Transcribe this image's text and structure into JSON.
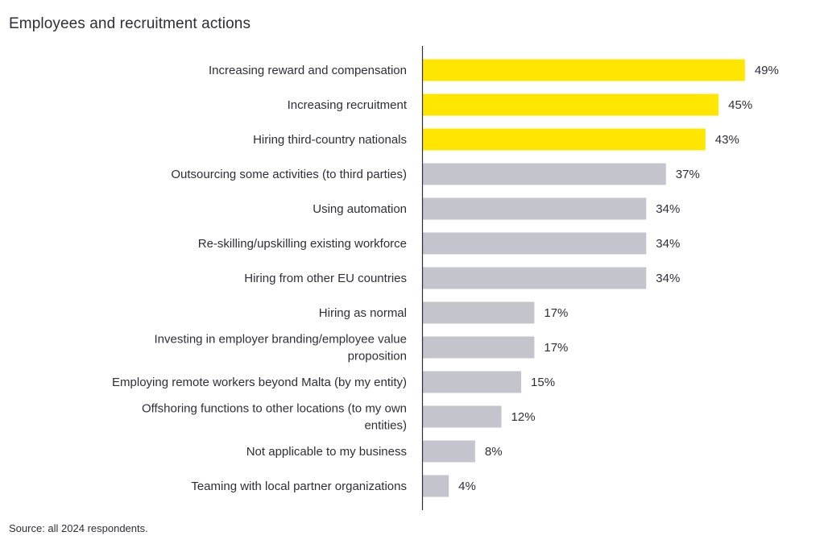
{
  "chart_data": {
    "type": "bar",
    "orientation": "horizontal",
    "title": "Employees and recruitment actions",
    "xlabel": "",
    "ylabel": "",
    "xlim": [
      0,
      50
    ],
    "grid": false,
    "legend": "none",
    "categories": [
      "Increasing reward and compensation",
      "Increasing recruitment",
      "Hiring third-country nationals",
      "Outsourcing some activities  (to third parties)",
      "Using automation",
      "Re-skilling/upskilling existing workforce",
      "Hiring from other EU countries",
      "Hiring as normal",
      "Investing in employer branding/employee value proposition",
      "Employing remote workers beyond Malta  (by my entity)",
      "Offshoring functions to other locations  (to my own entities)",
      "Not applicable to my business",
      "Teaming with local partner organizations"
    ],
    "category_label_lines": [
      [
        "Increasing reward and compensation"
      ],
      [
        "Increasing recruitment"
      ],
      [
        "Hiring third-country nationals"
      ],
      [
        "Outsourcing some activities  (to third parties)"
      ],
      [
        "Using automation"
      ],
      [
        "Re-skilling/upskilling existing workforce"
      ],
      [
        "Hiring from other EU countries"
      ],
      [
        "Hiring as normal"
      ],
      [
        "Investing in employer branding/employee value",
        "proposition"
      ],
      [
        "Employing remote workers beyond Malta  (by my entity)"
      ],
      [
        "Offshoring functions to other locations  (to my own",
        "entities)"
      ],
      [
        "Not applicable to my business"
      ],
      [
        "Teaming with local partner organizations"
      ]
    ],
    "values": [
      49,
      45,
      43,
      37,
      34,
      34,
      34,
      17,
      17,
      15,
      12,
      8,
      4
    ],
    "value_labels": [
      "49%",
      "45%",
      "43%",
      "37%",
      "34%",
      "34%",
      "34%",
      "17%",
      "17%",
      "15%",
      "12%",
      "8%",
      "4%"
    ],
    "highlight_count": 3,
    "colors": {
      "highlight": "#ffe600",
      "default": "#c4c4cd",
      "axis": "#2e2e38",
      "text": "#2e2e38"
    }
  },
  "footer": {
    "source": "Source: all 2024 respondents."
  }
}
